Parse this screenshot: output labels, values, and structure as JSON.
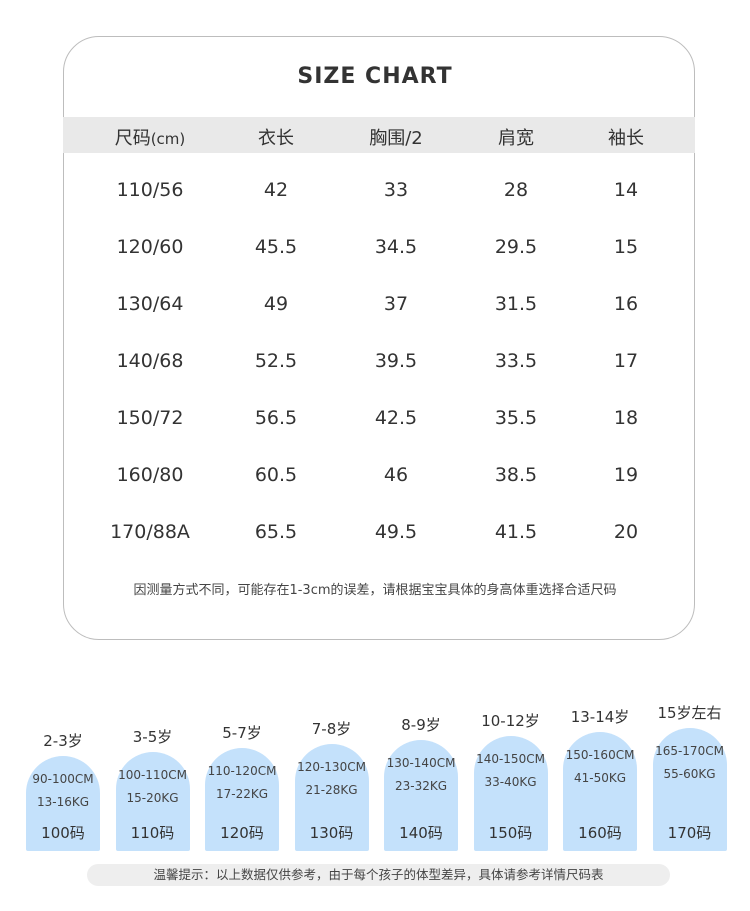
{
  "size_chart": {
    "title": "SIZE CHART",
    "headers": [
      {
        "main": "尺码",
        "unit": "(cm)"
      },
      {
        "main": "衣长",
        "unit": ""
      },
      {
        "main": "胸围/2",
        "unit": ""
      },
      {
        "main": "肩宽",
        "unit": ""
      },
      {
        "main": "袖长",
        "unit": ""
      }
    ],
    "rows": [
      [
        "110/56",
        "42",
        "33",
        "28",
        "14"
      ],
      [
        "120/60",
        "45.5",
        "34.5",
        "29.5",
        "15"
      ],
      [
        "130/64",
        "49",
        "37",
        "31.5",
        "16"
      ],
      [
        "140/68",
        "52.5",
        "39.5",
        "33.5",
        "17"
      ],
      [
        "150/72",
        "56.5",
        "42.5",
        "35.5",
        "18"
      ],
      [
        "160/80",
        "60.5",
        "46",
        "38.5",
        "19"
      ],
      [
        "170/88A",
        "65.5",
        "49.5",
        "41.5",
        "20"
      ]
    ],
    "note": "因测量方式不同，可能存在1-3cm的误差，请根据宝宝具体的身高体重选择合适尺码"
  },
  "age_guide": {
    "bar_color": "#c4e1fb",
    "items": [
      {
        "age": "2-3岁",
        "height": "90-100CM",
        "weight": "13-16KG",
        "size": "100码",
        "level": 1
      },
      {
        "age": "3-5岁",
        "height": "100-110CM",
        "weight": "15-20KG",
        "size": "110码",
        "level": 2
      },
      {
        "age": "5-7岁",
        "height": "110-120CM",
        "weight": "17-22KG",
        "size": "120码",
        "level": 3
      },
      {
        "age": "7-8岁",
        "height": "120-130CM",
        "weight": "21-28KG",
        "size": "130码",
        "level": 4
      },
      {
        "age": "8-9岁",
        "height": "130-140CM",
        "weight": "23-32KG",
        "size": "140码",
        "level": 5
      },
      {
        "age": "10-12岁",
        "height": "140-150CM",
        "weight": "33-40KG",
        "size": "150码",
        "level": 6
      },
      {
        "age": "13-14岁",
        "height": "150-160CM",
        "weight": "41-50KG",
        "size": "160码",
        "level": 7
      },
      {
        "age": "15岁左右",
        "height": "165-170CM",
        "weight": "55-60KG",
        "size": "170码",
        "level": 8
      }
    ],
    "tip": "温馨提示：以上数据仅供参考，由于每个孩子的体型差异，具体请参考详情尺码表"
  }
}
